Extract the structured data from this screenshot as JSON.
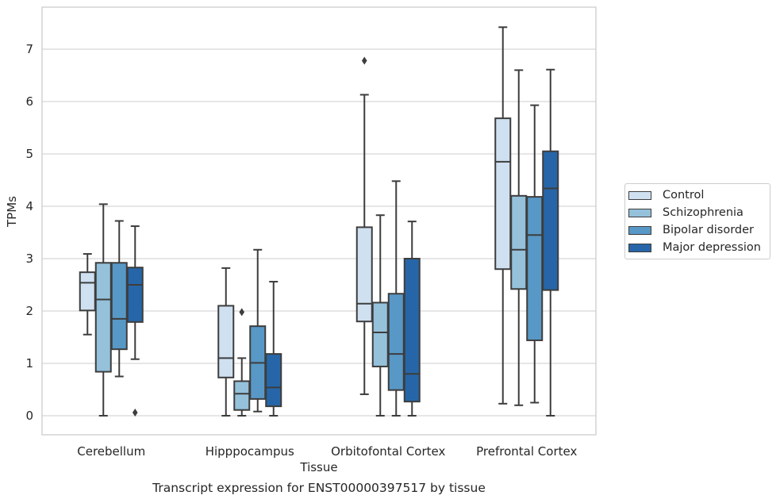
{
  "chart_data": {
    "type": "box",
    "title": "Transcript expression for ENST00000397517 by tissue",
    "xlabel": "Tissue",
    "ylabel": "TPMs",
    "ylim": [
      -0.35,
      7.8
    ],
    "yticks": [
      0,
      1,
      2,
      3,
      4,
      5,
      6,
      7
    ],
    "grid": true,
    "legend_position": "right",
    "categories": [
      "Cerebellum",
      "Hipppocampus",
      "Orbitofontal Cortex",
      "Prefrontal Cortex"
    ],
    "series": [
      {
        "name": "Control",
        "color": "#cfe0f1",
        "boxes": [
          {
            "whislo": 1.55,
            "q1": 2.01,
            "med": 2.54,
            "q3": 2.74,
            "whishi": 3.09,
            "fliers": []
          },
          {
            "whislo": 0.0,
            "q1": 0.73,
            "med": 1.1,
            "q3": 2.1,
            "whishi": 2.82,
            "fliers": []
          },
          {
            "whislo": 0.41,
            "q1": 1.8,
            "med": 2.14,
            "q3": 3.6,
            "whishi": 6.13,
            "fliers": [
              6.78
            ]
          },
          {
            "whislo": 0.23,
            "q1": 2.8,
            "med": 4.85,
            "q3": 5.68,
            "whishi": 7.42,
            "fliers": []
          }
        ]
      },
      {
        "name": "Schizophrenia",
        "color": "#95c1db",
        "boxes": [
          {
            "whislo": 0.0,
            "q1": 0.84,
            "med": 2.22,
            "q3": 2.92,
            "whishi": 4.04,
            "fliers": []
          },
          {
            "whislo": 0.0,
            "q1": 0.11,
            "med": 0.42,
            "q3": 0.66,
            "whishi": 1.1,
            "fliers": [
              1.98
            ]
          },
          {
            "whislo": 0.0,
            "q1": 0.94,
            "med": 1.59,
            "q3": 2.16,
            "whishi": 3.83,
            "fliers": []
          },
          {
            "whislo": 0.2,
            "q1": 2.42,
            "med": 3.17,
            "q3": 4.2,
            "whishi": 6.6,
            "fliers": []
          }
        ]
      },
      {
        "name": "Bipolar disorder",
        "color": "#5898c6",
        "boxes": [
          {
            "whislo": 0.75,
            "q1": 1.27,
            "med": 1.85,
            "q3": 2.92,
            "whishi": 3.72,
            "fliers": []
          },
          {
            "whislo": 0.08,
            "q1": 0.32,
            "med": 1.01,
            "q3": 1.71,
            "whishi": 3.17,
            "fliers": []
          },
          {
            "whislo": 0.0,
            "q1": 0.49,
            "med": 1.18,
            "q3": 2.33,
            "whishi": 4.48,
            "fliers": []
          },
          {
            "whislo": 0.25,
            "q1": 1.44,
            "med": 3.45,
            "q3": 4.18,
            "whishi": 5.93,
            "fliers": []
          }
        ]
      },
      {
        "name": "Major depression",
        "color": "#2666a8",
        "boxes": [
          {
            "whislo": 1.08,
            "q1": 1.79,
            "med": 2.5,
            "q3": 2.83,
            "whishi": 3.62,
            "fliers": [
              0.06
            ]
          },
          {
            "whislo": 0.0,
            "q1": 0.18,
            "med": 0.54,
            "q3": 1.18,
            "whishi": 2.56,
            "fliers": []
          },
          {
            "whislo": 0.0,
            "q1": 0.27,
            "med": 0.8,
            "q3": 3.0,
            "whishi": 3.71,
            "fliers": []
          },
          {
            "whislo": 0.0,
            "q1": 2.4,
            "med": 4.34,
            "q3": 5.05,
            "whishi": 6.61,
            "fliers": []
          }
        ]
      }
    ]
  }
}
